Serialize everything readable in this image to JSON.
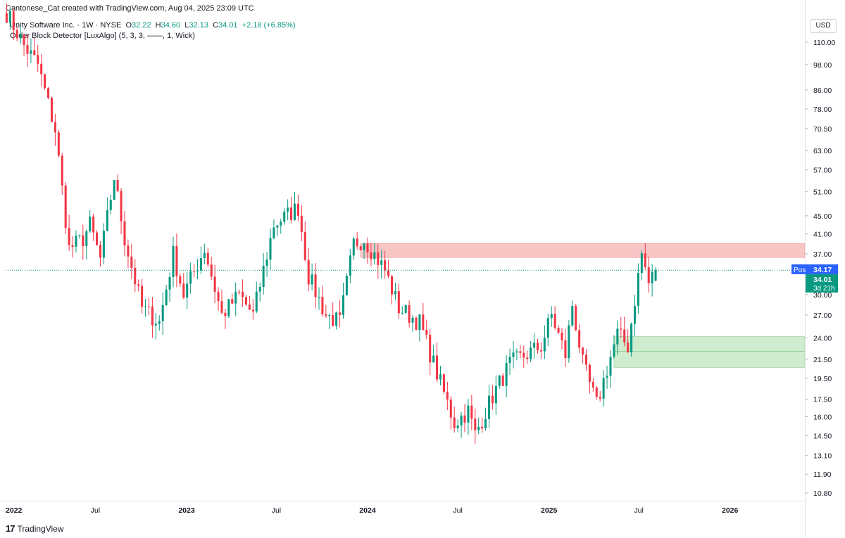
{
  "credit": "Cantonese_Cat created with TradingView.com, Aug 04, 2025 23:09 UTC",
  "legend": {
    "symbol": "Unity Software Inc. · 1W · NYSE",
    "o_label": "O",
    "o_value": "32.22",
    "h_label": "H",
    "h_value": "34.60",
    "l_label": "L",
    "l_value": "32.13",
    "c_label": "C",
    "c_value": "34.01",
    "change": "+2.18 (+6.85%)",
    "indicator": "Order Block Detector [LuxAlgo] (5, 3, 3, ——, 1, Wick)"
  },
  "currency": "USD",
  "brand": "TradingView",
  "colors": {
    "up": "#089981",
    "down": "#f23645",
    "bear_block": "#f7b3b3",
    "bull_block": "#bfe5bf",
    "post": "#2962ff"
  },
  "chart_data": {
    "type": "candlestick",
    "y_scale": "log",
    "ylim": [
      9.9,
      130
    ],
    "y_ticks": [
      "110.00",
      "98.00",
      "86.00",
      "78.00",
      "70.50",
      "63.00",
      "57.00",
      "51.00",
      "45.00",
      "41.00",
      "37.00",
      "30.00",
      "27.00",
      "24.00",
      "21.50",
      "19.50",
      "17.50",
      "16.00",
      "14.50",
      "13.10",
      "11.90",
      "10.80"
    ],
    "x_ticks": [
      "2022",
      "Jul",
      "2023",
      "Jul",
      "2024",
      "Jul",
      "2025",
      "Jul",
      "2026"
    ],
    "xlim": [
      "2022-01-01",
      "2026-06-01"
    ],
    "price_labels": [
      {
        "label": "Post",
        "value": "34.17",
        "price": 34.17,
        "color": "#2962ff"
      },
      {
        "label": "",
        "value": "34.01",
        "sub": "3d 21h",
        "price": 34.01,
        "color": "#089981"
      }
    ],
    "current_price": 34.01,
    "order_blocks": [
      {
        "type": "bearish",
        "from": "2023-12-18",
        "to": "2026-06-01",
        "low": 36.3,
        "high": 39.0
      },
      {
        "type": "bullish",
        "from": "2025-05-12",
        "to": "2026-06-01",
        "low": 20.6,
        "high": 24.2,
        "mid": 22.4
      }
    ],
    "anchors": [
      [
        "2022-01-03",
        128
      ],
      [
        "2022-02-07",
        108
      ],
      [
        "2022-03-07",
        98
      ],
      [
        "2022-04-11",
        70
      ],
      [
        "2022-05-09",
        38
      ],
      [
        "2022-06-06",
        40
      ],
      [
        "2022-06-20",
        43
      ],
      [
        "2022-07-11",
        36
      ],
      [
        "2022-08-08",
        55
      ],
      [
        "2022-08-29",
        40
      ],
      [
        "2022-10-03",
        28
      ],
      [
        "2022-11-07",
        26
      ],
      [
        "2022-12-05",
        37
      ],
      [
        "2022-12-26",
        30
      ],
      [
        "2023-02-06",
        38
      ],
      [
        "2023-03-13",
        27
      ],
      [
        "2023-04-17",
        30
      ],
      [
        "2023-05-15",
        27
      ],
      [
        "2023-06-26",
        43
      ],
      [
        "2023-08-14",
        47
      ],
      [
        "2023-09-04",
        33
      ],
      [
        "2023-10-09",
        27
      ],
      [
        "2023-11-06",
        26
      ],
      [
        "2023-12-04",
        39
      ],
      [
        "2023-12-25",
        40
      ],
      [
        "2024-02-05",
        34
      ],
      [
        "2024-03-04",
        28
      ],
      [
        "2024-04-15",
        26
      ],
      [
        "2024-05-20",
        20
      ],
      [
        "2024-06-24",
        15.5
      ],
      [
        "2024-07-22",
        16.5
      ],
      [
        "2024-08-05",
        14.6
      ],
      [
        "2024-09-09",
        17.8
      ],
      [
        "2024-10-14",
        21
      ],
      [
        "2024-12-16",
        23
      ],
      [
        "2025-01-06",
        27
      ],
      [
        "2025-02-03",
        22
      ],
      [
        "2025-02-17",
        28.5
      ],
      [
        "2025-03-10",
        21
      ],
      [
        "2025-04-07",
        17
      ],
      [
        "2025-04-28",
        20.5
      ],
      [
        "2025-05-19",
        24.5
      ],
      [
        "2025-06-09",
        23
      ],
      [
        "2025-06-30",
        33
      ],
      [
        "2025-07-07",
        37
      ],
      [
        "2025-07-21",
        31.8
      ],
      [
        "2025-08-04",
        34.01
      ]
    ],
    "last_candle": {
      "date": "2025-08-04",
      "open": 32.22,
      "high": 34.6,
      "low": 32.13,
      "close": 34.01
    }
  }
}
